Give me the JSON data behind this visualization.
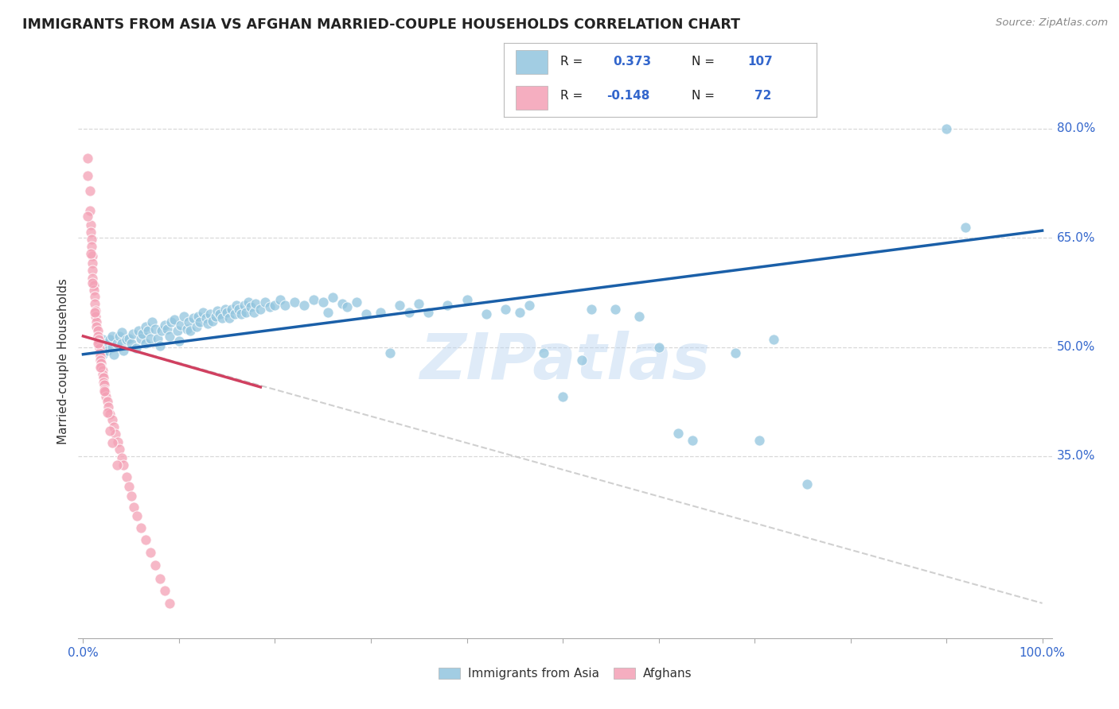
{
  "title": "IMMIGRANTS FROM ASIA VS AFGHAN MARRIED-COUPLE HOUSEHOLDS CORRELATION CHART",
  "source": "Source: ZipAtlas.com",
  "ylabel": "Married-couple Households",
  "blue_color": "#92c5de",
  "pink_color": "#f4a0b5",
  "trend_blue": "#1a5fa8",
  "trend_pink": "#d04060",
  "trend_gray": "#c8c8c8",
  "watermark": "ZIPatlas",
  "blue_scatter": [
    [
      0.018,
      0.5
    ],
    [
      0.02,
      0.51
    ],
    [
      0.02,
      0.49
    ],
    [
      0.022,
      0.505
    ],
    [
      0.025,
      0.495
    ],
    [
      0.028,
      0.51
    ],
    [
      0.03,
      0.5
    ],
    [
      0.03,
      0.515
    ],
    [
      0.032,
      0.49
    ],
    [
      0.035,
      0.505
    ],
    [
      0.038,
      0.515
    ],
    [
      0.04,
      0.505
    ],
    [
      0.04,
      0.52
    ],
    [
      0.042,
      0.495
    ],
    [
      0.045,
      0.51
    ],
    [
      0.048,
      0.512
    ],
    [
      0.05,
      0.505
    ],
    [
      0.052,
      0.518
    ],
    [
      0.055,
      0.498
    ],
    [
      0.058,
      0.522
    ],
    [
      0.06,
      0.512
    ],
    [
      0.062,
      0.518
    ],
    [
      0.065,
      0.505
    ],
    [
      0.065,
      0.528
    ],
    [
      0.068,
      0.522
    ],
    [
      0.07,
      0.512
    ],
    [
      0.072,
      0.535
    ],
    [
      0.075,
      0.525
    ],
    [
      0.078,
      0.512
    ],
    [
      0.08,
      0.502
    ],
    [
      0.082,
      0.522
    ],
    [
      0.085,
      0.53
    ],
    [
      0.088,
      0.525
    ],
    [
      0.09,
      0.515
    ],
    [
      0.092,
      0.535
    ],
    [
      0.095,
      0.538
    ],
    [
      0.098,
      0.522
    ],
    [
      0.1,
      0.508
    ],
    [
      0.102,
      0.53
    ],
    [
      0.105,
      0.542
    ],
    [
      0.108,
      0.525
    ],
    [
      0.11,
      0.535
    ],
    [
      0.112,
      0.522
    ],
    [
      0.115,
      0.54
    ],
    [
      0.118,
      0.528
    ],
    [
      0.12,
      0.542
    ],
    [
      0.122,
      0.535
    ],
    [
      0.125,
      0.548
    ],
    [
      0.128,
      0.54
    ],
    [
      0.13,
      0.532
    ],
    [
      0.132,
      0.545
    ],
    [
      0.135,
      0.536
    ],
    [
      0.138,
      0.542
    ],
    [
      0.14,
      0.55
    ],
    [
      0.142,
      0.545
    ],
    [
      0.145,
      0.54
    ],
    [
      0.148,
      0.552
    ],
    [
      0.15,
      0.548
    ],
    [
      0.152,
      0.54
    ],
    [
      0.155,
      0.552
    ],
    [
      0.158,
      0.545
    ],
    [
      0.16,
      0.558
    ],
    [
      0.162,
      0.552
    ],
    [
      0.165,
      0.545
    ],
    [
      0.168,
      0.558
    ],
    [
      0.17,
      0.548
    ],
    [
      0.172,
      0.562
    ],
    [
      0.175,
      0.555
    ],
    [
      0.178,
      0.548
    ],
    [
      0.18,
      0.56
    ],
    [
      0.185,
      0.552
    ],
    [
      0.19,
      0.562
    ],
    [
      0.195,
      0.555
    ],
    [
      0.2,
      0.558
    ],
    [
      0.205,
      0.565
    ],
    [
      0.21,
      0.558
    ],
    [
      0.22,
      0.562
    ],
    [
      0.23,
      0.558
    ],
    [
      0.24,
      0.565
    ],
    [
      0.25,
      0.562
    ],
    [
      0.255,
      0.548
    ],
    [
      0.26,
      0.568
    ],
    [
      0.27,
      0.56
    ],
    [
      0.275,
      0.555
    ],
    [
      0.285,
      0.562
    ],
    [
      0.295,
      0.545
    ],
    [
      0.31,
      0.548
    ],
    [
      0.32,
      0.492
    ],
    [
      0.33,
      0.558
    ],
    [
      0.34,
      0.548
    ],
    [
      0.35,
      0.56
    ],
    [
      0.36,
      0.548
    ],
    [
      0.38,
      0.558
    ],
    [
      0.4,
      0.565
    ],
    [
      0.42,
      0.545
    ],
    [
      0.44,
      0.552
    ],
    [
      0.455,
      0.548
    ],
    [
      0.465,
      0.558
    ],
    [
      0.48,
      0.492
    ],
    [
      0.5,
      0.432
    ],
    [
      0.52,
      0.482
    ],
    [
      0.53,
      0.552
    ],
    [
      0.555,
      0.552
    ],
    [
      0.58,
      0.542
    ],
    [
      0.6,
      0.5
    ],
    [
      0.62,
      0.382
    ],
    [
      0.635,
      0.372
    ],
    [
      0.68,
      0.492
    ],
    [
      0.705,
      0.372
    ],
    [
      0.72,
      0.51
    ],
    [
      0.755,
      0.312
    ],
    [
      0.9,
      0.8
    ],
    [
      0.92,
      0.665
    ]
  ],
  "pink_scatter": [
    [
      0.005,
      0.76
    ],
    [
      0.005,
      0.735
    ],
    [
      0.007,
      0.715
    ],
    [
      0.007,
      0.688
    ],
    [
      0.008,
      0.668
    ],
    [
      0.008,
      0.658
    ],
    [
      0.009,
      0.648
    ],
    [
      0.009,
      0.638
    ],
    [
      0.01,
      0.625
    ],
    [
      0.01,
      0.615
    ],
    [
      0.01,
      0.605
    ],
    [
      0.01,
      0.595
    ],
    [
      0.011,
      0.585
    ],
    [
      0.011,
      0.578
    ],
    [
      0.012,
      0.57
    ],
    [
      0.012,
      0.56
    ],
    [
      0.013,
      0.55
    ],
    [
      0.013,
      0.542
    ],
    [
      0.014,
      0.535
    ],
    [
      0.014,
      0.528
    ],
    [
      0.015,
      0.522
    ],
    [
      0.015,
      0.515
    ],
    [
      0.016,
      0.51
    ],
    [
      0.016,
      0.505
    ],
    [
      0.017,
      0.498
    ],
    [
      0.017,
      0.492
    ],
    [
      0.018,
      0.488
    ],
    [
      0.018,
      0.482
    ],
    [
      0.019,
      0.478
    ],
    [
      0.019,
      0.472
    ],
    [
      0.02,
      0.468
    ],
    [
      0.02,
      0.462
    ],
    [
      0.021,
      0.458
    ],
    [
      0.021,
      0.452
    ],
    [
      0.022,
      0.448
    ],
    [
      0.022,
      0.442
    ],
    [
      0.023,
      0.438
    ],
    [
      0.024,
      0.432
    ],
    [
      0.025,
      0.425
    ],
    [
      0.026,
      0.418
    ],
    [
      0.028,
      0.408
    ],
    [
      0.03,
      0.4
    ],
    [
      0.032,
      0.39
    ],
    [
      0.034,
      0.38
    ],
    [
      0.036,
      0.37
    ],
    [
      0.038,
      0.36
    ],
    [
      0.04,
      0.348
    ],
    [
      0.042,
      0.338
    ],
    [
      0.045,
      0.322
    ],
    [
      0.048,
      0.308
    ],
    [
      0.05,
      0.295
    ],
    [
      0.053,
      0.28
    ],
    [
      0.056,
      0.268
    ],
    [
      0.06,
      0.252
    ],
    [
      0.065,
      0.235
    ],
    [
      0.07,
      0.218
    ],
    [
      0.075,
      0.2
    ],
    [
      0.08,
      0.182
    ],
    [
      0.085,
      0.165
    ],
    [
      0.09,
      0.148
    ],
    [
      0.005,
      0.68
    ],
    [
      0.008,
      0.628
    ],
    [
      0.01,
      0.588
    ],
    [
      0.012,
      0.548
    ],
    [
      0.015,
      0.505
    ],
    [
      0.018,
      0.472
    ],
    [
      0.022,
      0.44
    ],
    [
      0.025,
      0.41
    ],
    [
      0.028,
      0.385
    ],
    [
      0.03,
      0.368
    ],
    [
      0.035,
      0.338
    ]
  ],
  "blue_trend_x": [
    0.0,
    1.0
  ],
  "blue_trend_y": [
    0.49,
    0.66
  ],
  "pink_trend_x": [
    0.0,
    0.185
  ],
  "pink_trend_y": [
    0.515,
    0.445
  ],
  "gray_trend_x": [
    0.0,
    1.0
  ],
  "gray_trend_y": [
    0.515,
    0.148
  ],
  "ylim": [
    0.1,
    0.86
  ],
  "xlim": [
    -0.005,
    1.01
  ],
  "yticks": [
    0.35,
    0.5,
    0.65,
    0.8
  ],
  "ytick_labels": [
    "35.0%",
    "50.0%",
    "65.0%",
    "80.0%"
  ],
  "figsize": [
    14.06,
    8.92
  ],
  "dpi": 100
}
